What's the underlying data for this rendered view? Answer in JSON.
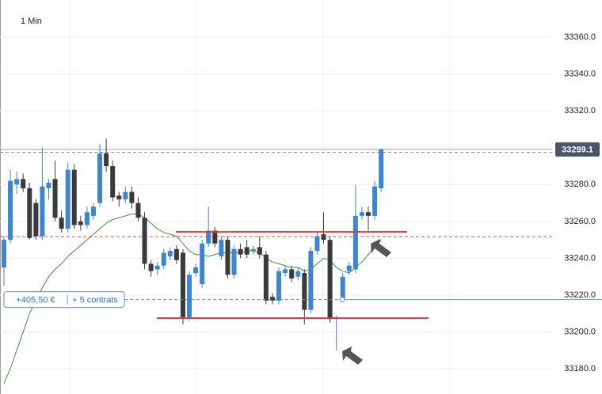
{
  "chart_data": {
    "type": "candlestick",
    "title": "1 Min",
    "ylim": [
      33166.3,
      33380.2
    ],
    "yticks": [
      {
        "value": 33180,
        "label": "33180.0"
      },
      {
        "value": 33200,
        "label": "33200.0"
      },
      {
        "value": 33220,
        "label": "33220.0"
      },
      {
        "value": 33240,
        "label": "33240.0"
      },
      {
        "value": 33260,
        "label": "33260.0"
      },
      {
        "value": 33280,
        "label": "33280.0"
      },
      {
        "value": 33300,
        "label": "33300.0"
      },
      {
        "value": 33320,
        "label": "33320.0"
      },
      {
        "value": 33340,
        "label": "33340.0"
      },
      {
        "value": 33360,
        "label": "33360.0"
      }
    ],
    "grid": true,
    "up_color": "#3d85d0",
    "down_color": "#3a3a3c",
    "candles": [
      [
        33235,
        33252,
        33225,
        33250
      ],
      [
        33250,
        33288,
        33248,
        33282
      ],
      [
        33280,
        33287,
        33275,
        33283
      ],
      [
        33283,
        33286,
        33276,
        33278
      ],
      [
        33278,
        33281,
        33250,
        33251
      ],
      [
        33270,
        33272,
        33250,
        33252
      ],
      [
        33252,
        33300,
        33250,
        33279
      ],
      [
        33278,
        33283,
        33272,
        33281
      ],
      [
        33283,
        33293,
        33260,
        33262
      ],
      [
        33262,
        33266,
        33254,
        33256
      ],
      [
        33256,
        33292,
        33254,
        33288
      ],
      [
        33288,
        33291,
        33256,
        33258
      ],
      [
        33260,
        33263,
        33255,
        33258
      ],
      [
        33258,
        33268,
        33256,
        33265
      ],
      [
        33263,
        33270,
        33261,
        33268
      ],
      [
        33270,
        33302,
        33268,
        33297
      ],
      [
        33297,
        33305,
        33287,
        33290
      ],
      [
        33290,
        33293,
        33271,
        33273
      ],
      [
        33274,
        33276,
        33268,
        33272
      ],
      [
        33272,
        33279,
        33270,
        33276
      ],
      [
        33276,
        33279,
        33267,
        33270
      ],
      [
        33270,
        33273,
        33260,
        33262
      ],
      [
        33262,
        33265,
        33234,
        33237
      ],
      [
        33237,
        33239,
        33230,
        33233
      ],
      [
        33234,
        33238,
        33231,
        33236
      ],
      [
        33236,
        33245,
        33234,
        33243
      ],
      [
        33241,
        33246,
        33239,
        33244
      ],
      [
        33245,
        33247,
        33237,
        33239
      ],
      [
        33243,
        33245,
        33204,
        33208
      ],
      [
        33208,
        33233,
        33206,
        33231
      ],
      [
        33232,
        33237,
        33230,
        33235
      ],
      [
        33226,
        33250,
        33224,
        33248
      ],
      [
        33248,
        33268,
        33246,
        33255
      ],
      [
        33255,
        33257,
        33246,
        33248
      ],
      [
        33241,
        33252,
        33239,
        33250
      ],
      [
        33250,
        33252,
        33229,
        33231
      ],
      [
        33231,
        33247,
        33229,
        33245
      ],
      [
        33245,
        33248,
        33240,
        33242
      ],
      [
        33246,
        33250,
        33240,
        33242
      ],
      [
        33244,
        33247,
        33242,
        33245
      ],
      [
        33246,
        33252,
        33240,
        33242
      ],
      [
        33242,
        33244,
        33215,
        33217
      ],
      [
        33219,
        33221,
        33215,
        33217
      ],
      [
        33217,
        33235,
        33215,
        33233
      ],
      [
        33232,
        33236,
        33230,
        33234
      ],
      [
        33234,
        33236,
        33227,
        33229
      ],
      [
        33230,
        33235,
        33228,
        33233
      ],
      [
        33232,
        33234,
        33204,
        33212
      ],
      [
        33212,
        33246,
        33210,
        33244
      ],
      [
        33244,
        33254,
        33242,
        33252
      ],
      [
        33253,
        33265,
        33248,
        33250
      ],
      [
        33250,
        33252,
        33205,
        33207
      ],
      [
        33207,
        33209,
        33190,
        33208
      ],
      [
        33218,
        33232,
        33216,
        33230
      ],
      [
        33233,
        33238,
        33231,
        33236
      ],
      [
        33234,
        33280,
        33232,
        33263
      ],
      [
        33263,
        33268,
        33261,
        33265
      ],
      [
        33265,
        33268,
        33255,
        33263
      ],
      [
        33263,
        33282,
        33261,
        33279
      ],
      [
        33278,
        33299.5,
        33276,
        33299.1
      ]
    ],
    "moving_average": {
      "color": "#3f8f3a",
      "values": [
        33172,
        33180,
        33190,
        33200,
        33210,
        33217,
        33224,
        33230,
        33234,
        33237,
        33241,
        33244,
        33247,
        33250,
        33253,
        33256,
        33259,
        33261,
        33262,
        33263,
        33264,
        33264,
        33262,
        33259,
        33256,
        33254,
        33253,
        33252,
        33248,
        33244,
        33242,
        33242,
        33241,
        33242,
        33243,
        33243,
        33243,
        33243,
        33244,
        33244,
        33243,
        33240,
        33238,
        33237,
        33236,
        33235,
        33235,
        33233,
        33234,
        33237,
        33240,
        33239,
        33235,
        33233,
        33232,
        33235,
        33238,
        33242,
        33246,
        33250
      ]
    },
    "last_price": 33299.1,
    "reference_price": 33297.5,
    "order_price": 33251.7,
    "resistance": 33254.3,
    "support": 33207.5,
    "position": {
      "price": 33217.6,
      "pnl": "+405,50 €",
      "size": "+ 5 contrats"
    }
  }
}
